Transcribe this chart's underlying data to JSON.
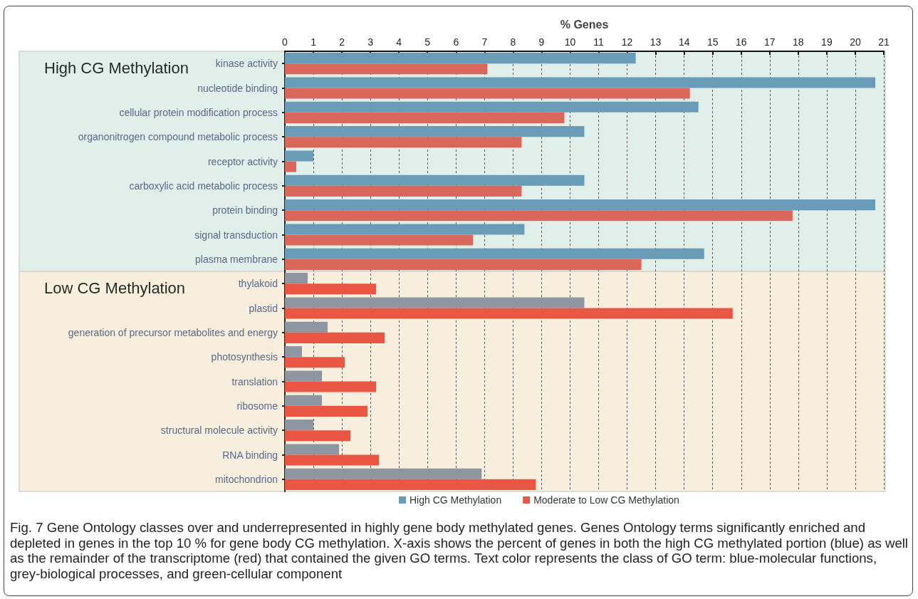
{
  "chart_data": {
    "type": "bar",
    "orientation": "horizontal",
    "xlabel": "% Genes",
    "categories": [
      "kinase activity",
      "nucleotide binding",
      "cellular protein modification process",
      "organonitrogen compound metabolic process",
      "receptor activity",
      "carboxylic acid metabolic process",
      "protein binding",
      "signal transduction",
      "plasma membrane",
      "thylakoid",
      "plastid",
      "generation of precursor metabolites and energy",
      "photosynthesis",
      "translation",
      "ribosome",
      "structural molecule activity",
      "RNA binding",
      "mitochondrion"
    ],
    "series": [
      {
        "name": "High CG Methylation",
        "color": "#6a9cb7",
        "colors": [
          "#6a9cb7",
          "#6a9cb7",
          "#6a9cb7",
          "#6a9cb7",
          "#6a9cb7",
          "#6a9cb7",
          "#6a9cb7",
          "#6a9cb7",
          "#6a9cb7",
          "#8e96a1",
          "#8e96a1",
          "#8e96a1",
          "#8e96a1",
          "#8e96a1",
          "#8e96a1",
          "#8e96a1",
          "#8e96a1",
          "#8e96a1"
        ],
        "values": [
          12.3,
          20.7,
          14.5,
          10.5,
          1.0,
          10.5,
          20.7,
          8.4,
          14.7,
          0.8,
          10.5,
          1.5,
          0.6,
          1.3,
          1.3,
          1.0,
          1.9,
          6.9
        ]
      },
      {
        "name": "Moderate to Low CG Methylation",
        "color": "#e95744",
        "colors": [
          "#d9675c",
          "#d9675c",
          "#d9675c",
          "#d9675c",
          "#d9675c",
          "#d9675c",
          "#d9675c",
          "#d9675c",
          "#d9675c",
          "#e95744",
          "#e95744",
          "#e95744",
          "#e95744",
          "#e95744",
          "#e95744",
          "#e95744",
          "#e95744",
          "#e95744"
        ],
        "values": [
          7.1,
          14.2,
          9.8,
          8.3,
          0.4,
          8.3,
          17.8,
          6.6,
          12.5,
          3.2,
          15.7,
          3.5,
          2.1,
          3.2,
          2.9,
          2.3,
          3.3,
          8.8
        ]
      }
    ],
    "xlim": [
      0,
      21
    ],
    "xticks": [
      0,
      1,
      2,
      3,
      4,
      5,
      6,
      7,
      8,
      9,
      10,
      11,
      12,
      13,
      14,
      15,
      16,
      17,
      18,
      19,
      20,
      21
    ],
    "grid": "x",
    "legend": "bottom",
    "bands": [
      {
        "axis": "y",
        "from": "kinase activity",
        "to": "plasma membrane",
        "label": "High CG Methylation",
        "color": "#e0efe9"
      },
      {
        "axis": "y",
        "from": "thylakoid",
        "to": "mitochondrion",
        "label": "Low CG Methylation",
        "color": "#f7eedd"
      }
    ],
    "annotations": [
      "Fig. 7 Gene Ontology classes over and underrepresented in highly gene body methylated genes. Genes Ontology terms significantly enriched and depleted in genes in the top 10 % for gene body CG methylation. X-axis shows the percent of genes in both the high CG methylated portion (blue) as well as the remainder of the transcriptome (red) that contained the given GO terms. Text color represents the class of GO term: blue-molecular functions, grey-biological processes, and green-cellular component"
    ]
  }
}
